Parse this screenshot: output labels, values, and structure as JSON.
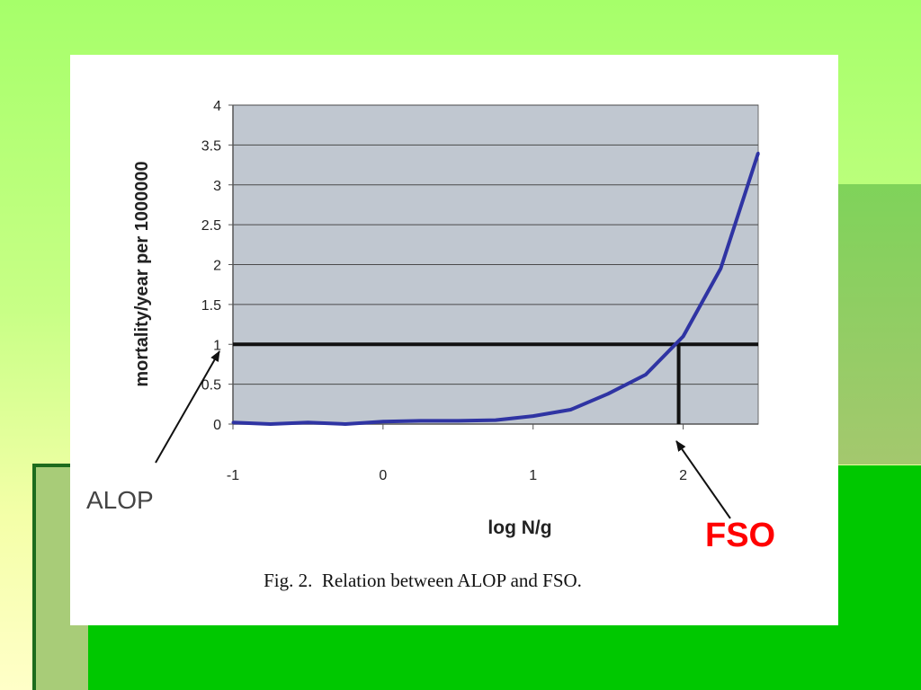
{
  "chart_data": {
    "type": "line",
    "xlabel": "log N/g",
    "ylabel": "mortality/year per 1000000",
    "x_ticks": [
      "-1",
      "0",
      "1",
      "2"
    ],
    "y_ticks": [
      "0",
      "0.5",
      "1",
      "1.5",
      "2",
      "2.5",
      "3",
      "3.5",
      "4"
    ],
    "xlim": [
      -1,
      2.5
    ],
    "ylim": [
      0,
      4
    ],
    "grid": "horizontal",
    "series": [
      {
        "x": [
          -1,
          -0.75,
          -0.5,
          -0.25,
          0,
          0.25,
          0.5,
          0.75,
          1,
          1.25,
          1.5,
          1.75,
          2,
          2.25,
          2.5
        ],
        "y": [
          0.02,
          0.0,
          0.02,
          0.0,
          0.03,
          0.04,
          0.04,
          0.05,
          0.1,
          0.18,
          0.38,
          0.62,
          1.1,
          1.95,
          3.4
        ]
      }
    ],
    "alop_level": 1,
    "fso_value": 1.97,
    "caption": "Fig. 2.  Relation between ALOP and FSO.",
    "annotations": {
      "alop": "ALOP",
      "fso": "FSO"
    }
  },
  "colors": {
    "plot_background": "#c0c7d0",
    "curve": "#2f34a3",
    "reference_lines": "#111111",
    "fso_text": "#ff0000"
  }
}
